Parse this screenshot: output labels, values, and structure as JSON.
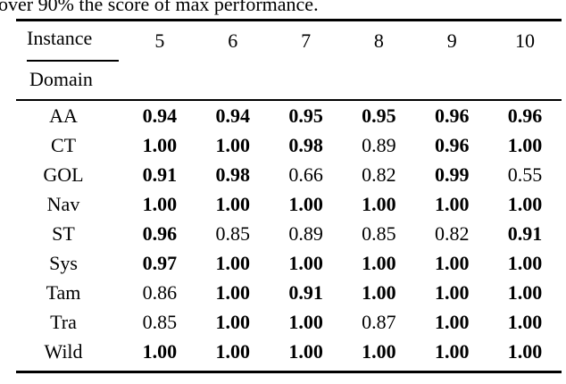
{
  "caption": "over 90% the score of max performance.",
  "table": {
    "corner_top": "Instance",
    "corner_bottom": "Domain",
    "columns": [
      "5",
      "6",
      "7",
      "8",
      "9",
      "10"
    ],
    "rows": [
      {
        "domain": "AA",
        "values": [
          "0.94",
          "0.94",
          "0.95",
          "0.95",
          "0.96",
          "0.96"
        ],
        "bold": [
          true,
          true,
          true,
          true,
          true,
          true
        ]
      },
      {
        "domain": "CT",
        "values": [
          "1.00",
          "1.00",
          "0.98",
          "0.89",
          "0.96",
          "1.00"
        ],
        "bold": [
          true,
          true,
          true,
          false,
          true,
          true
        ]
      },
      {
        "domain": "GOL",
        "values": [
          "0.91",
          "0.98",
          "0.66",
          "0.82",
          "0.99",
          "0.55"
        ],
        "bold": [
          true,
          true,
          false,
          false,
          true,
          false
        ]
      },
      {
        "domain": "Nav",
        "values": [
          "1.00",
          "1.00",
          "1.00",
          "1.00",
          "1.00",
          "1.00"
        ],
        "bold": [
          true,
          true,
          true,
          true,
          true,
          true
        ]
      },
      {
        "domain": "ST",
        "values": [
          "0.96",
          "0.85",
          "0.89",
          "0.85",
          "0.82",
          "0.91"
        ],
        "bold": [
          true,
          false,
          false,
          false,
          false,
          true
        ]
      },
      {
        "domain": "Sys",
        "values": [
          "0.97",
          "1.00",
          "1.00",
          "1.00",
          "1.00",
          "1.00"
        ],
        "bold": [
          true,
          true,
          true,
          true,
          true,
          true
        ]
      },
      {
        "domain": "Tam",
        "values": [
          "0.86",
          "1.00",
          "0.91",
          "1.00",
          "1.00",
          "1.00"
        ],
        "bold": [
          false,
          true,
          true,
          true,
          true,
          true
        ]
      },
      {
        "domain": "Tra",
        "values": [
          "0.85",
          "1.00",
          "1.00",
          "0.87",
          "1.00",
          "1.00"
        ],
        "bold": [
          false,
          true,
          true,
          false,
          true,
          true
        ]
      },
      {
        "domain": "Wild",
        "values": [
          "1.00",
          "1.00",
          "1.00",
          "1.00",
          "1.00",
          "1.00"
        ],
        "bold": [
          true,
          true,
          true,
          true,
          true,
          true
        ]
      }
    ],
    "text_color": "#000000",
    "background_color": "#ffffff"
  }
}
